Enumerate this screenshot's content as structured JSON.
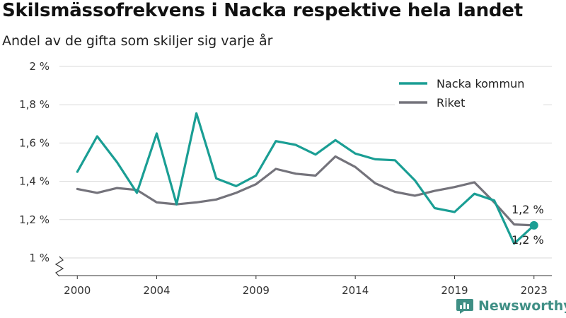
{
  "title": "Skilsmässofrekvens i Nacka respektive hela landet",
  "subtitle": "Andel av de gifta som skiljer sig varje år",
  "brand": {
    "name": "Newsworthy",
    "icon": "newsworthy-logo-icon",
    "color": "#3f8f85"
  },
  "chart_data": {
    "type": "line",
    "x": [
      2000,
      2001,
      2002,
      2003,
      2004,
      2005,
      2006,
      2007,
      2008,
      2009,
      2010,
      2011,
      2012,
      2013,
      2014,
      2015,
      2016,
      2017,
      2018,
      2019,
      2020,
      2021,
      2022,
      2023
    ],
    "xticks": [
      2000,
      2004,
      2009,
      2014,
      2019,
      2023
    ],
    "xtick_labels": [
      "2000",
      "2004",
      "2009",
      "2014",
      "2019",
      "2023"
    ],
    "ylim": [
      1.0,
      2.0
    ],
    "yticks": [
      1.0,
      1.2,
      1.4,
      1.6,
      1.8,
      2.0
    ],
    "ytick_labels": [
      "1 %",
      "1,2 %",
      "1,4 %",
      "1,6 %",
      "1,8 %",
      "2 %"
    ],
    "y_axis_break": true,
    "grid": "horizontal",
    "legend_position": "top-right",
    "series": [
      {
        "name": "Nacka kommun",
        "color": "#1a9e94",
        "values": [
          1.45,
          1.635,
          1.5,
          1.34,
          1.65,
          1.28,
          1.755,
          1.415,
          1.375,
          1.43,
          1.61,
          1.59,
          1.54,
          1.615,
          1.545,
          1.515,
          1.51,
          1.405,
          1.26,
          1.24,
          1.335,
          1.3,
          1.075,
          1.17
        ],
        "end_label": "1,2 %"
      },
      {
        "name": "Riket",
        "color": "#74737b",
        "values": [
          1.36,
          1.34,
          1.365,
          1.355,
          1.29,
          1.28,
          1.29,
          1.305,
          1.34,
          1.385,
          1.465,
          1.44,
          1.43,
          1.53,
          1.475,
          1.39,
          1.345,
          1.325,
          1.35,
          1.37,
          1.395,
          1.29,
          1.175,
          1.17
        ],
        "end_label": "1,2 %"
      }
    ]
  }
}
